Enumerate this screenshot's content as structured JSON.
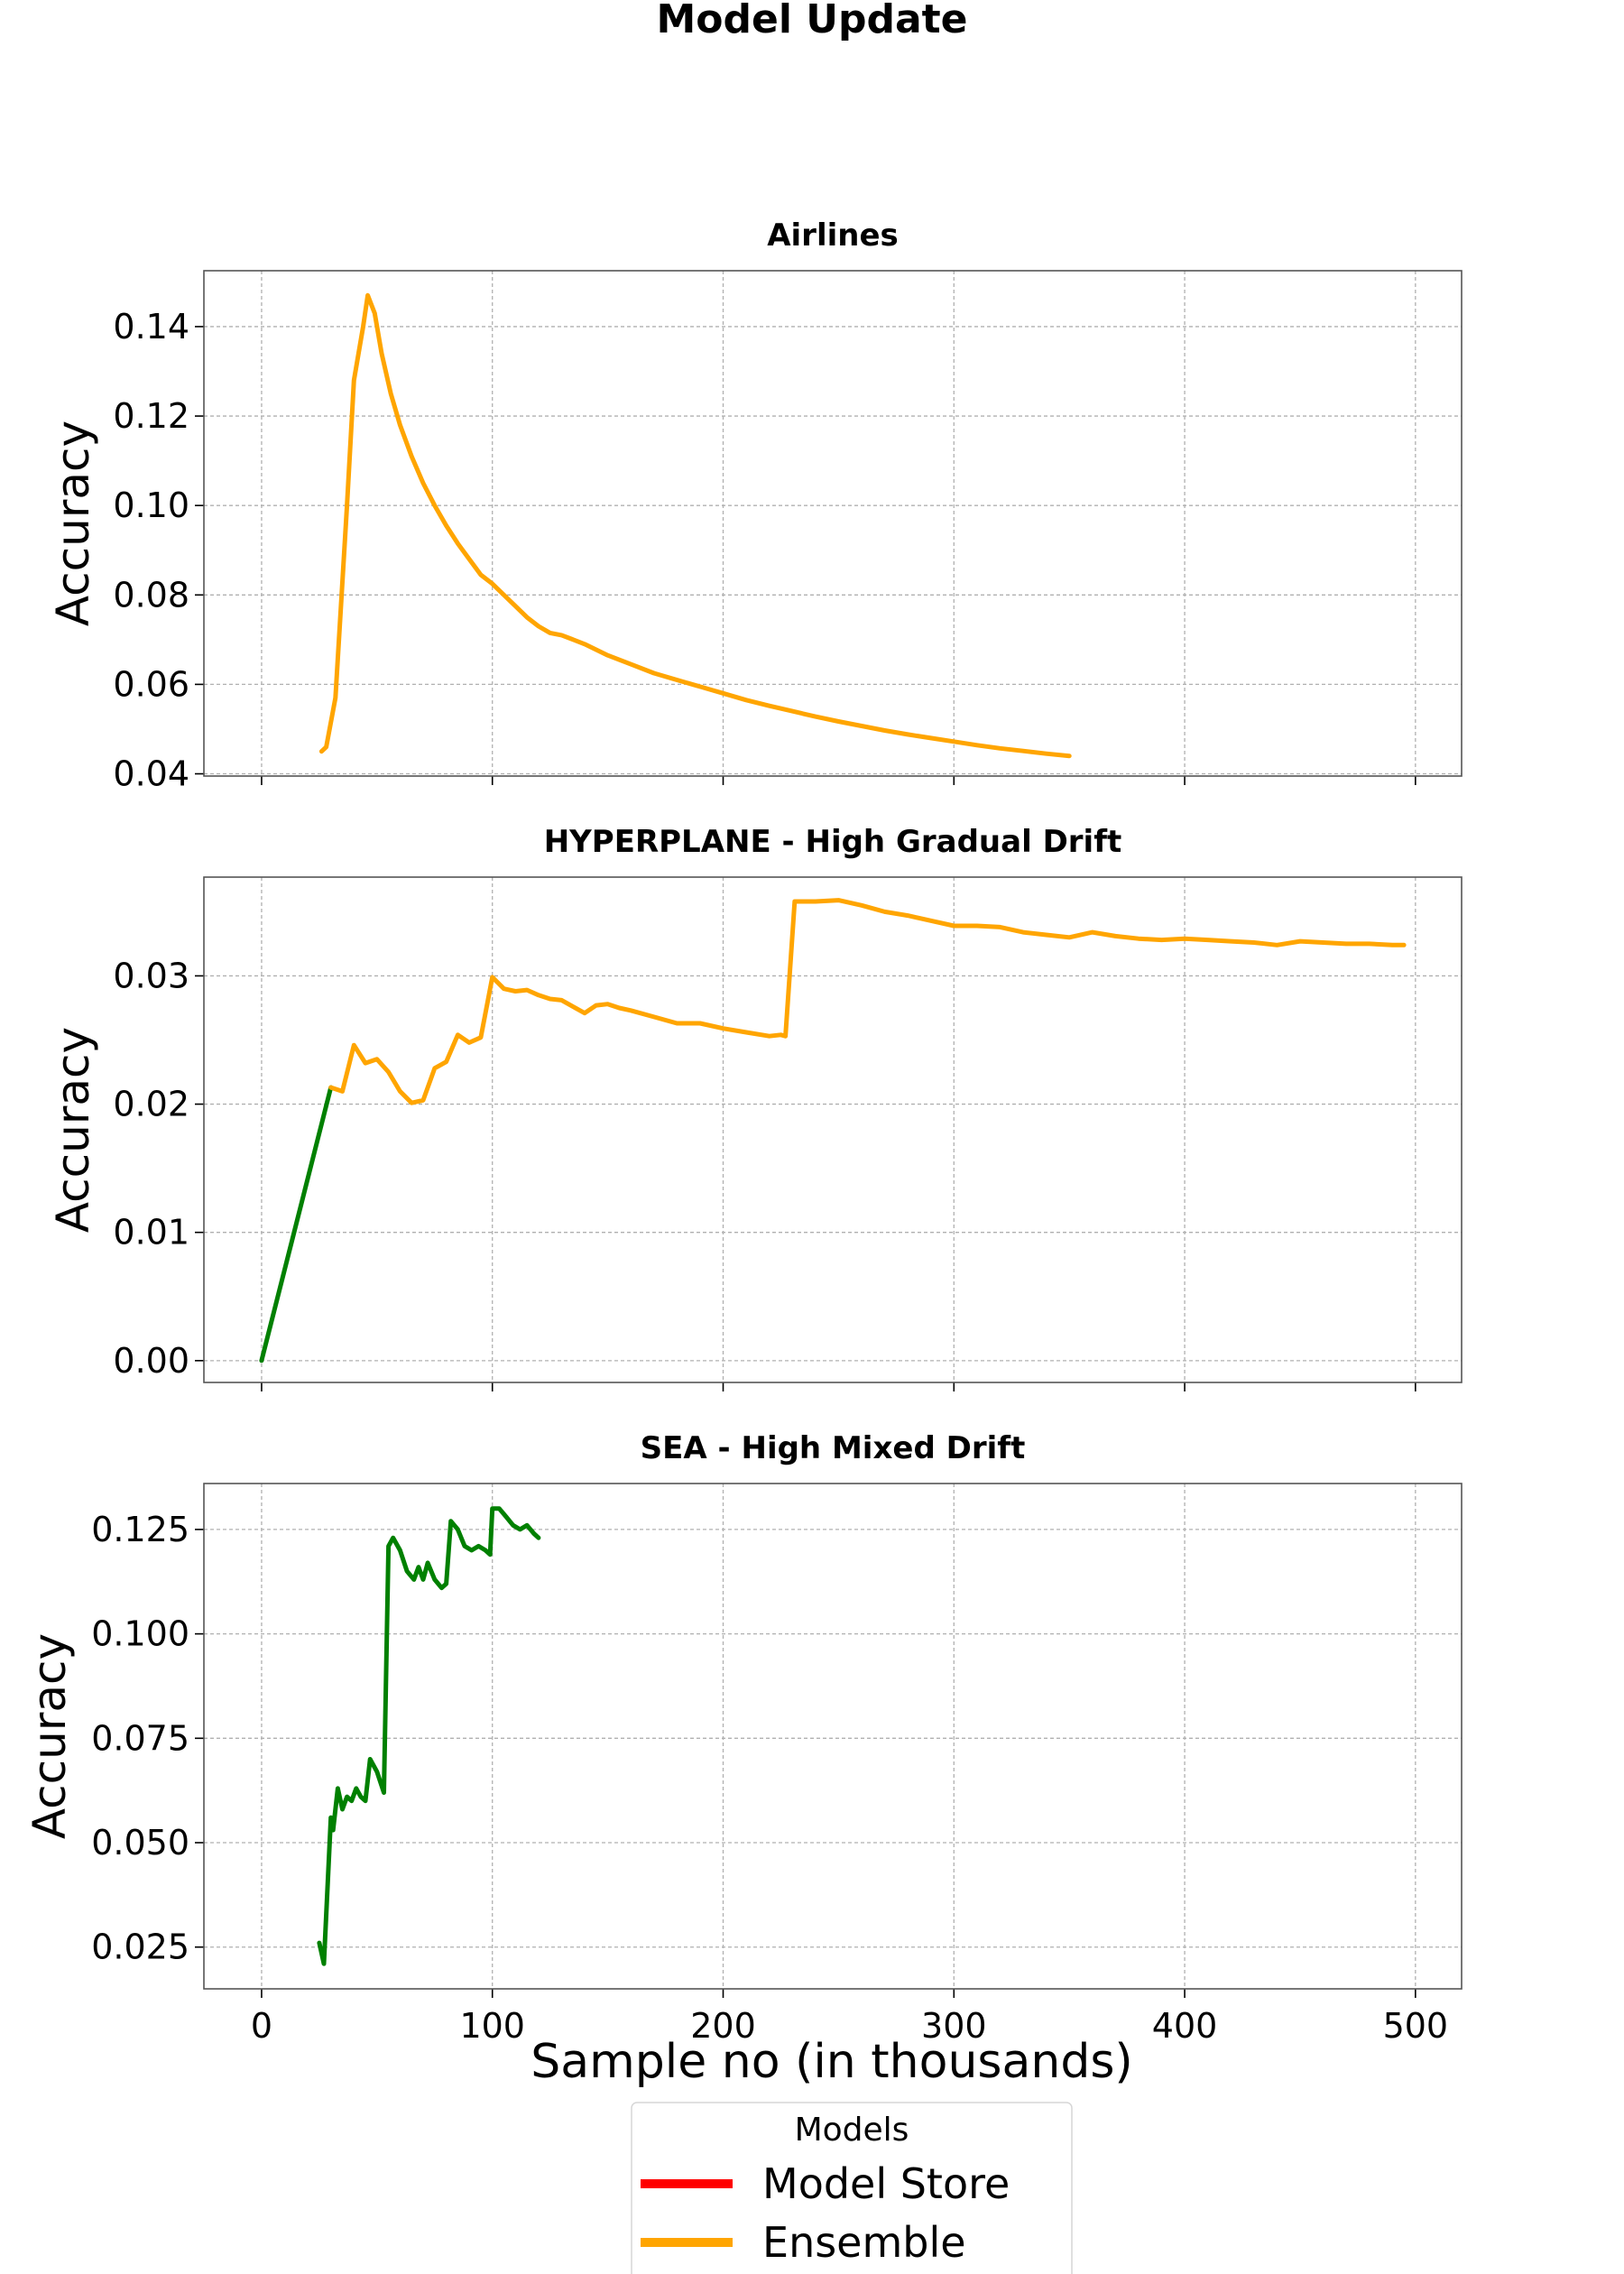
{
  "figure_title": "Model Update",
  "shared_xlabel": "Sample no (in thousands)",
  "legend": {
    "title": "Models",
    "placement": "bottom-center",
    "entries": [
      {
        "label": "Model Store",
        "color": "#ff0000"
      },
      {
        "label": "Ensemble",
        "color": "#ffa500"
      }
    ]
  },
  "colors": {
    "model_store": "#ff0000",
    "ensemble": "#ffa500",
    "third_series": "#008000"
  },
  "chart_data": [
    {
      "type": "line",
      "title": "Airlines",
      "xlabel": "",
      "ylabel": "Accuracy",
      "xlim": [
        -25,
        520
      ],
      "ylim": [
        0.0395,
        0.1525
      ],
      "x_ticks": [
        0,
        100,
        200,
        300,
        400,
        500
      ],
      "y_ticks": [
        0.04,
        0.06,
        0.08,
        0.1,
        0.12,
        0.14
      ],
      "y_tick_labels": [
        "0.04",
        "0.06",
        "0.08",
        "0.10",
        "0.12",
        "0.14"
      ],
      "grid": true,
      "series": [
        {
          "color": "#ffa500",
          "points": [
            [
              26,
              0.045
            ],
            [
              28,
              0.046
            ],
            [
              32,
              0.057
            ],
            [
              37,
              0.1
            ],
            [
              40,
              0.128
            ],
            [
              44,
              0.14
            ],
            [
              46,
              0.147
            ],
            [
              49,
              0.143
            ],
            [
              52,
              0.134
            ],
            [
              56,
              0.125
            ],
            [
              60,
              0.118
            ],
            [
              65,
              0.111
            ],
            [
              70,
              0.105
            ],
            [
              75,
              0.1
            ],
            [
              80,
              0.0955
            ],
            [
              85,
              0.0915
            ],
            [
              90,
              0.088
            ],
            [
              95,
              0.0845
            ],
            [
              100,
              0.0825
            ],
            [
              105,
              0.08
            ],
            [
              110,
              0.0775
            ],
            [
              115,
              0.075
            ],
            [
              120,
              0.073
            ],
            [
              125,
              0.0715
            ],
            [
              130,
              0.071
            ],
            [
              135,
              0.07
            ],
            [
              140,
              0.069
            ],
            [
              150,
              0.0665
            ],
            [
              160,
              0.0645
            ],
            [
              170,
              0.0625
            ],
            [
              180,
              0.061
            ],
            [
              190,
              0.0595
            ],
            [
              200,
              0.058
            ],
            [
              210,
              0.0565
            ],
            [
              220,
              0.0552
            ],
            [
              230,
              0.054
            ],
            [
              240,
              0.0528
            ],
            [
              250,
              0.0517
            ],
            [
              260,
              0.0507
            ],
            [
              270,
              0.0497
            ],
            [
              280,
              0.0488
            ],
            [
              290,
              0.048
            ],
            [
              300,
              0.0472
            ],
            [
              310,
              0.0464
            ],
            [
              320,
              0.0457
            ],
            [
              330,
              0.0451
            ],
            [
              340,
              0.0445
            ],
            [
              350,
              0.044
            ]
          ]
        }
      ]
    },
    {
      "type": "line",
      "title": "HYPERPLANE - High Gradual Drift",
      "xlabel": "",
      "ylabel": "Accuracy",
      "xlim": [
        -25,
        520
      ],
      "ylim": [
        -0.0017,
        0.0377
      ],
      "x_ticks": [
        0,
        100,
        200,
        300,
        400,
        500
      ],
      "y_ticks": [
        0.0,
        0.01,
        0.02,
        0.03
      ],
      "y_tick_labels": [
        "0.00",
        "0.01",
        "0.02",
        "0.03"
      ],
      "grid": true,
      "series": [
        {
          "color": "#008000",
          "points": [
            [
              0,
              0.0
            ],
            [
              30,
              0.0213
            ]
          ]
        },
        {
          "color": "#ffa500",
          "points": [
            [
              30,
              0.0213
            ],
            [
              35,
              0.021
            ],
            [
              40,
              0.0246
            ],
            [
              45,
              0.0232
            ],
            [
              50,
              0.0235
            ],
            [
              55,
              0.0225
            ],
            [
              60,
              0.021
            ],
            [
              65,
              0.0201
            ],
            [
              70,
              0.0203
            ],
            [
              75,
              0.0228
            ],
            [
              80,
              0.0233
            ],
            [
              85,
              0.0254
            ],
            [
              90,
              0.0248
            ],
            [
              95,
              0.0252
            ],
            [
              100,
              0.0299
            ],
            [
              105,
              0.029
            ],
            [
              110,
              0.0288
            ],
            [
              115,
              0.0289
            ],
            [
              120,
              0.0285
            ],
            [
              125,
              0.0282
            ],
            [
              130,
              0.0281
            ],
            [
              135,
              0.0276
            ],
            [
              140,
              0.0271
            ],
            [
              145,
              0.0277
            ],
            [
              150,
              0.0278
            ],
            [
              155,
              0.0275
            ],
            [
              160,
              0.0273
            ],
            [
              170,
              0.0268
            ],
            [
              180,
              0.0263
            ],
            [
              190,
              0.0263
            ],
            [
              200,
              0.0259
            ],
            [
              210,
              0.0256
            ],
            [
              220,
              0.0253
            ],
            [
              225,
              0.0254
            ],
            [
              227,
              0.0253
            ],
            [
              231,
              0.0358
            ],
            [
              240,
              0.0358
            ],
            [
              250,
              0.0359
            ],
            [
              260,
              0.0355
            ],
            [
              270,
              0.035
            ],
            [
              280,
              0.0347
            ],
            [
              290,
              0.0343
            ],
            [
              300,
              0.0339
            ],
            [
              310,
              0.0339
            ],
            [
              320,
              0.0338
            ],
            [
              330,
              0.0334
            ],
            [
              340,
              0.0332
            ],
            [
              350,
              0.033
            ],
            [
              360,
              0.0334
            ],
            [
              370,
              0.0331
            ],
            [
              380,
              0.0329
            ],
            [
              390,
              0.0328
            ],
            [
              400,
              0.0329
            ],
            [
              410,
              0.0328
            ],
            [
              420,
              0.0327
            ],
            [
              430,
              0.0326
            ],
            [
              440,
              0.0324
            ],
            [
              450,
              0.0327
            ],
            [
              460,
              0.0326
            ],
            [
              470,
              0.0325
            ],
            [
              480,
              0.0325
            ],
            [
              490,
              0.0324
            ],
            [
              495,
              0.0324
            ]
          ]
        }
      ]
    },
    {
      "type": "line",
      "title": "SEA - High Mixed Drift",
      "xlabel": "Sample no (in thousands)",
      "ylabel": "Accuracy",
      "xlim": [
        -25,
        520
      ],
      "ylim": [
        0.015,
        0.136
      ],
      "x_ticks": [
        0,
        100,
        200,
        300,
        400,
        500
      ],
      "x_tick_labels": [
        "0",
        "100",
        "200",
        "300",
        "400",
        "500"
      ],
      "y_ticks": [
        0.025,
        0.05,
        0.075,
        0.1,
        0.125
      ],
      "y_tick_labels": [
        "0.025",
        "0.050",
        "0.075",
        "0.100",
        "0.125"
      ],
      "grid": true,
      "series": [
        {
          "color": "#008000",
          "points": [
            [
              25,
              0.026
            ],
            [
              27,
              0.021
            ],
            [
              30,
              0.056
            ],
            [
              31,
              0.053
            ],
            [
              33,
              0.063
            ],
            [
              35,
              0.058
            ],
            [
              37,
              0.061
            ],
            [
              39,
              0.06
            ],
            [
              41,
              0.063
            ],
            [
              43,
              0.061
            ],
            [
              45,
              0.06
            ],
            [
              47,
              0.07
            ],
            [
              50,
              0.067
            ],
            [
              53,
              0.062
            ],
            [
              55,
              0.121
            ],
            [
              57,
              0.123
            ],
            [
              60,
              0.12
            ],
            [
              63,
              0.115
            ],
            [
              66,
              0.113
            ],
            [
              68,
              0.116
            ],
            [
              70,
              0.113
            ],
            [
              72,
              0.117
            ],
            [
              75,
              0.113
            ],
            [
              78,
              0.111
            ],
            [
              80,
              0.112
            ],
            [
              82,
              0.127
            ],
            [
              85,
              0.125
            ],
            [
              88,
              0.121
            ],
            [
              91,
              0.12
            ],
            [
              94,
              0.121
            ],
            [
              97,
              0.12
            ],
            [
              99,
              0.119
            ],
            [
              100,
              0.13
            ],
            [
              103,
              0.13
            ],
            [
              106,
              0.128
            ],
            [
              109,
              0.126
            ],
            [
              112,
              0.125
            ],
            [
              115,
              0.126
            ],
            [
              118,
              0.124
            ],
            [
              120,
              0.123
            ]
          ]
        }
      ]
    }
  ]
}
